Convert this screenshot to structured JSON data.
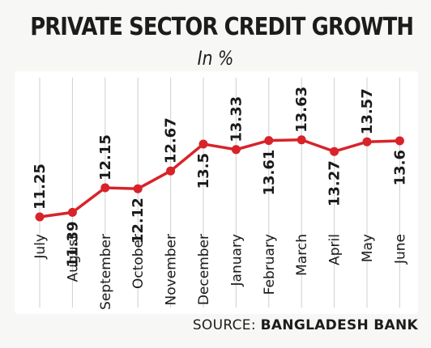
{
  "chart_data": {
    "type": "line",
    "title": "PRIVATE SECTOR CREDIT GROWTH",
    "subtitle": "In %",
    "categories": [
      "July",
      "August",
      "September",
      "October",
      "November",
      "December",
      "January",
      "February",
      "March",
      "April",
      "May",
      "June"
    ],
    "values": [
      11.25,
      11.39,
      12.15,
      12.12,
      12.67,
      13.5,
      13.33,
      13.61,
      13.63,
      13.27,
      13.57,
      13.6
    ],
    "value_labels": [
      "11.25",
      "11.39",
      "12.15",
      "12.12",
      "12.67",
      "13.5",
      "13.33",
      "13.61",
      "13.63",
      "13.27",
      "13.57",
      "13.6"
    ],
    "ylim": [
      9,
      16
    ],
    "grid": "vertical",
    "line_color": "#d8232a"
  },
  "source": {
    "prefix": "SOURCE:",
    "name": "BANGLADESH BANK"
  }
}
